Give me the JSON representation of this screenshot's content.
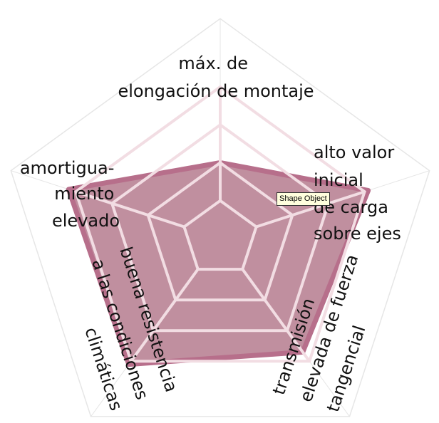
{
  "chart_data": {
    "type": "radar",
    "axes": [
      {
        "name": "máx. de elongación de montaje",
        "lines": [
          "máx. de",
          "elongación de montaje"
        ]
      },
      {
        "name": "alto valor inicial de carga sobre ejes",
        "lines": [
          "alto valor",
          "inicial",
          "de carga",
          "sobre ejes"
        ]
      },
      {
        "name": "transmisión elevada de fuerza tangencial",
        "lines": [
          "transmisión",
          "elevada de fuerza",
          "tangencial"
        ]
      },
      {
        "name": "buena resistencia a las condiciones climáticas",
        "lines": [
          "buena resistencia",
          "a las condiciones",
          "climáticas"
        ]
      },
      {
        "name": "amortiguamiento elevado",
        "lines": [
          "amortigua-",
          "miento",
          "elevado"
        ]
      }
    ],
    "rings": 4,
    "range": [
      0,
      4
    ],
    "values": [
      2.0,
      4.1,
      3.7,
      4.1,
      4.2
    ],
    "colors": {
      "fill": "#c08f9f",
      "stroke": "#b76f8b",
      "grid": "#f2dde3",
      "outer_grid": "#e6e6e6"
    }
  },
  "tooltip": "Shape Object"
}
